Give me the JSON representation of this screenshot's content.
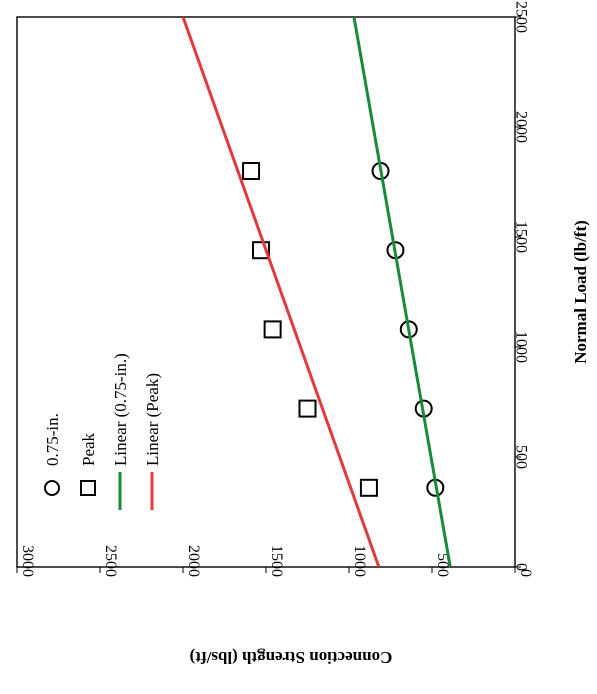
{
  "chart_data": {
    "type": "scatter",
    "orientation": "rotated-90-clockwise",
    "xlabel": "Normal Load (lb/ft)",
    "ylabel": "Connection Strength (lbs/ft)",
    "xlim": [
      0,
      2500
    ],
    "ylim": [
      0,
      3000
    ],
    "xticks": [
      0,
      500,
      1000,
      1500,
      2000,
      2500
    ],
    "yticks": [
      0,
      500,
      1000,
      1500,
      2000,
      2500,
      3000
    ],
    "grid": false,
    "legend_position": "top-left",
    "series": [
      {
        "name": "0.75-in.",
        "kind": "points",
        "marker": "circle",
        "color": "#000000",
        "x": [
          360,
          720,
          1080,
          1440,
          1800
        ],
        "y": [
          480,
          550,
          640,
          720,
          810
        ]
      },
      {
        "name": "Peak",
        "kind": "points",
        "marker": "square",
        "color": "#000000",
        "x": [
          360,
          720,
          1080,
          1440,
          1800
        ],
        "y": [
          880,
          1250,
          1460,
          1530,
          1590
        ]
      },
      {
        "name": "Linear (0.75-in.)",
        "kind": "line",
        "color": "#1a8a3a",
        "x": [
          0,
          2500
        ],
        "y": [
          390,
          970
        ]
      },
      {
        "name": "Linear (Peak)",
        "kind": "line",
        "color": "#e03a3a",
        "x": [
          0,
          2500
        ],
        "y": [
          820,
          2000
        ]
      }
    ]
  }
}
